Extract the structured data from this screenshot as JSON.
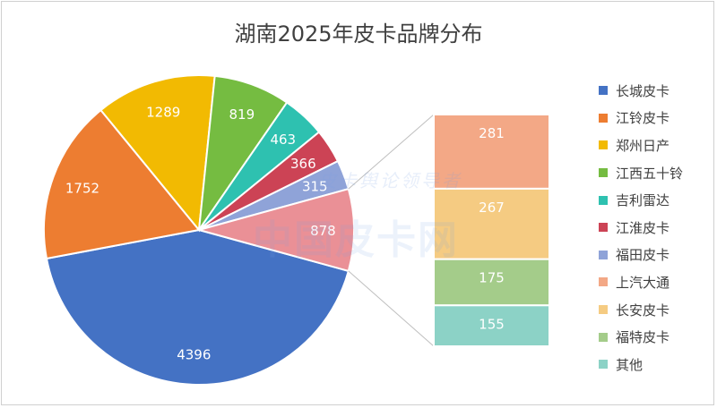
{
  "chart_data": {
    "type": "pie-of-bar",
    "title": "湖南2025年皮卡品牌分布",
    "pie": {
      "categories": [
        "长城皮卡",
        "江铃皮卡",
        "郑州日产",
        "江西五十铃",
        "吉利雷达",
        "江淮皮卡",
        "福田皮卡"
      ],
      "values": [
        4396,
        1752,
        1289,
        819,
        463,
        366,
        315
      ],
      "colors": [
        "#4472C4",
        "#ED7D31",
        "#F2BA02",
        "#75BC41",
        "#2EC1B0",
        "#CC4355",
        "#8FA3D8"
      ],
      "other_value": 878,
      "other_color": "#EA9096"
    },
    "bar": {
      "categories": [
        "上汽大通",
        "长安皮卡",
        "福特皮卡",
        "其他"
      ],
      "values": [
        281,
        267,
        175,
        155
      ],
      "colors": [
        "#F3A886",
        "#F5CB82",
        "#A4CC8A",
        "#8CD2C6"
      ]
    },
    "legend": {
      "placement": "right",
      "entries": [
        "长城皮卡",
        "江铃皮卡",
        "郑州日产",
        "江西五十铃",
        "吉利雷达",
        "江淮皮卡",
        "福田皮卡",
        "上汽大通",
        "长安皮卡",
        "福特皮卡",
        "其他"
      ],
      "colors": [
        "#4472C4",
        "#ED7D31",
        "#F2BA02",
        "#75BC41",
        "#2EC1B0",
        "#CC4355",
        "#8FA3D8",
        "#F3A886",
        "#F5CB82",
        "#A4CC8A",
        "#8CD2C6"
      ]
    },
    "data_labels": true
  },
  "watermark": {
    "main": "中国皮卡网",
    "small": "皮卡舆论领导者"
  }
}
